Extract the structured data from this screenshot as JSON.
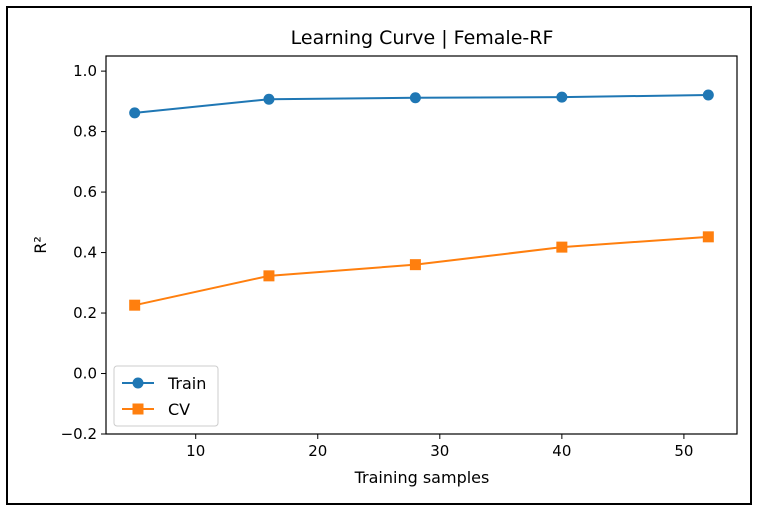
{
  "chart_data": {
    "type": "line",
    "title": "Learning Curve | Female-RF",
    "xlabel": "Training samples",
    "ylabel": "R²",
    "xlim": [
      2.65,
      54.35
    ],
    "ylim": [
      -0.2,
      1.05
    ],
    "xticks": [
      10,
      20,
      30,
      40,
      50
    ],
    "yticks": [
      -0.2,
      0.0,
      0.2,
      0.4,
      0.6,
      0.8,
      1.0
    ],
    "xtick_labels": [
      "10",
      "20",
      "30",
      "40",
      "50"
    ],
    "ytick_labels": [
      "−0.2",
      "0.0",
      "0.2",
      "0.4",
      "0.6",
      "0.8",
      "1.0"
    ],
    "grid": false,
    "legend_position": "lower-left",
    "x": [
      5,
      16,
      28,
      40,
      52
    ],
    "series": [
      {
        "name": "Train",
        "marker": "circle",
        "color": "#1f77b4",
        "values": [
          0.862,
          0.907,
          0.912,
          0.914,
          0.921
        ]
      },
      {
        "name": "CV",
        "marker": "square",
        "color": "#ff7f0e",
        "values": [
          0.226,
          0.323,
          0.36,
          0.418,
          0.452
        ]
      }
    ]
  }
}
